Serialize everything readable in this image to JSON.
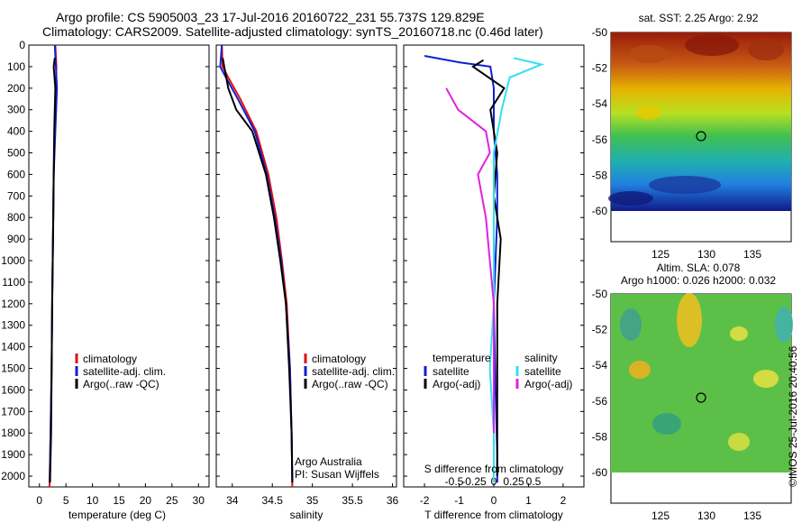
{
  "header": {
    "line1": "Argo profile: CS 5905003_23 17-Jul-2016 20160722_231 55.737S 129.829E",
    "line2": "Climatology: CARS2009. Satellite-adjusted climatology: synTS_20160718.nc (0.46d later)"
  },
  "credit": "©IMOS 25-Jul-2016 20:40:56",
  "panel1": {
    "xlabel": "temperature (deg C)",
    "xticks": [
      "0",
      "5",
      "10",
      "15",
      "20",
      "25",
      "30"
    ],
    "legend": [
      "climatology",
      "satellite-adj. clim.",
      "Argo(..raw -QC)"
    ]
  },
  "panel2": {
    "xlabel": "salinity",
    "xticks": [
      "34",
      "34.5",
      "35",
      "35.5",
      "36"
    ],
    "legend": [
      "climatology",
      "satellite-adj. clim.",
      "Argo(..raw -QC)"
    ],
    "footer1": "Argo Australia",
    "footer2": "PI: Susan Wijffels"
  },
  "panel3": {
    "xlabel": "T difference from climatology",
    "xticks": [
      "-2",
      "-1",
      "0",
      "1",
      "2"
    ],
    "top_label": "S difference from climatology",
    "top_ticks": [
      "-0.5",
      "-0.25",
      "0",
      "0.25",
      "0.5"
    ],
    "legend_left_head": "temperature",
    "legend_left": [
      "satellite",
      "Argo(-adj)"
    ],
    "legend_right_head": "salinity",
    "legend_right": [
      "satellite",
      "Argo(-adj)"
    ]
  },
  "depth_ticks": [
    "0",
    "100",
    "200",
    "300",
    "400",
    "500",
    "600",
    "700",
    "800",
    "900",
    "1000",
    "1100",
    "1200",
    "1300",
    "1400",
    "1500",
    "1600",
    "1700",
    "1800",
    "1900",
    "2000"
  ],
  "map1": {
    "title": "sat. SST: 2.25 Argo: 2.92",
    "yticks": [
      "-50",
      "-52",
      "-54",
      "-56",
      "-58",
      "-60"
    ],
    "xticks": [
      "125",
      "130",
      "135"
    ]
  },
  "map2": {
    "title1": "Altim. SLA: 0.078",
    "title2": "Argo h1000: 0.026 h2000: 0.032",
    "yticks": [
      "-50",
      "-52",
      "-54",
      "-56",
      "-58",
      "-60"
    ],
    "xticks": [
      "125",
      "130",
      "135"
    ]
  },
  "colors": {
    "climatology": "#e01010",
    "satellite": "#1020d0",
    "argo": "#000000",
    "sal_satellite": "#30e0f0",
    "sal_argo": "#e020e0"
  },
  "chart_data": [
    {
      "type": "line",
      "title": "",
      "xlabel": "temperature (deg C)",
      "ylabel": "",
      "xlim": [
        -2,
        32
      ],
      "ylim": [
        2050,
        0
      ],
      "series": [
        {
          "name": "climatology",
          "x": [
            3.0,
            3.2,
            3.1,
            2.9,
            2.7,
            2.6,
            2.5,
            2.4,
            2.3,
            2.1,
            1.9
          ],
          "y": [
            0,
            100,
            200,
            400,
            600,
            800,
            1000,
            1200,
            1500,
            1800,
            2050
          ]
        },
        {
          "name": "satellite-adj. clim.",
          "x": [
            2.9,
            3.1,
            3.3,
            3.0,
            2.7,
            2.6,
            2.5,
            2.4,
            2.3,
            2.1,
            1.95
          ],
          "y": [
            0,
            100,
            200,
            400,
            600,
            800,
            1000,
            1200,
            1500,
            1800,
            2030
          ]
        },
        {
          "name": "Argo(..raw -QC)",
          "x": [
            2.9,
            2.7,
            3.0,
            2.8,
            2.7,
            2.6,
            2.5,
            2.4,
            2.3,
            2.2,
            2.0
          ],
          "y": [
            60,
            100,
            200,
            400,
            600,
            800,
            1000,
            1200,
            1500,
            1800,
            2030
          ]
        }
      ]
    },
    {
      "type": "line",
      "xlabel": "salinity",
      "xlim": [
        33.8,
        36.05
      ],
      "ylim": [
        2050,
        0
      ],
      "series": [
        {
          "name": "climatology",
          "x": [
            33.87,
            33.88,
            33.95,
            34.1,
            34.3,
            34.45,
            34.55,
            34.62,
            34.68,
            34.72,
            34.74,
            34.75
          ],
          "y": [
            0,
            100,
            150,
            250,
            400,
            600,
            800,
            1000,
            1200,
            1500,
            1800,
            2050
          ]
        },
        {
          "name": "satellite-adj. clim.",
          "x": [
            33.87,
            33.85,
            33.92,
            34.07,
            34.28,
            34.43,
            34.53,
            34.61,
            34.67,
            34.72,
            34.74,
            34.75
          ],
          "y": [
            0,
            100,
            150,
            250,
            400,
            600,
            800,
            1000,
            1200,
            1500,
            1800,
            2030
          ]
        },
        {
          "name": "Argo(..raw -QC)",
          "x": [
            33.88,
            33.9,
            33.95,
            34.05,
            34.25,
            34.42,
            34.52,
            34.6,
            34.67,
            34.71,
            34.74,
            34.75
          ],
          "y": [
            60,
            100,
            200,
            300,
            400,
            600,
            800,
            1000,
            1200,
            1500,
            1800,
            2030
          ]
        }
      ]
    },
    {
      "type": "line",
      "xlabel": "T difference from climatology",
      "xlim": [
        -2.6,
        2.6
      ],
      "ylim": [
        2050,
        0
      ],
      "series": [
        {
          "name": "temperature satellite",
          "x": [
            -2.0,
            -1.0,
            -0.1,
            0.0,
            0.0,
            0.1,
            0.1,
            0.0,
            0.05,
            0.1,
            0.1
          ],
          "y": [
            50,
            80,
            100,
            200,
            400,
            600,
            800,
            1200,
            1600,
            1900,
            2030
          ]
        },
        {
          "name": "temperature Argo(-adj)",
          "x": [
            -0.3,
            -0.6,
            0.3,
            -0.1,
            0.1,
            0.0,
            0.2,
            0.1,
            0.1,
            0.1
          ],
          "y": [
            70,
            100,
            200,
            300,
            500,
            700,
            900,
            1200,
            1600,
            2000
          ]
        },
        {
          "name": "salinity satellite",
          "x": [
            0.25,
            0.6,
            0.2,
            0.1,
            0.0,
            0.0,
            0.0,
            -0.05,
            0.0,
            0.0
          ],
          "y": [
            60,
            90,
            150,
            300,
            500,
            800,
            1200,
            1500,
            1800,
            2030
          ]
        },
        {
          "name": "salinity Argo(-adj)",
          "x": [
            -0.6,
            -0.45,
            -0.1,
            -0.05,
            -0.2,
            -0.1,
            0.0,
            0.0
          ],
          "y": [
            200,
            300,
            400,
            500,
            600,
            800,
            1200,
            1800
          ]
        }
      ]
    }
  ]
}
